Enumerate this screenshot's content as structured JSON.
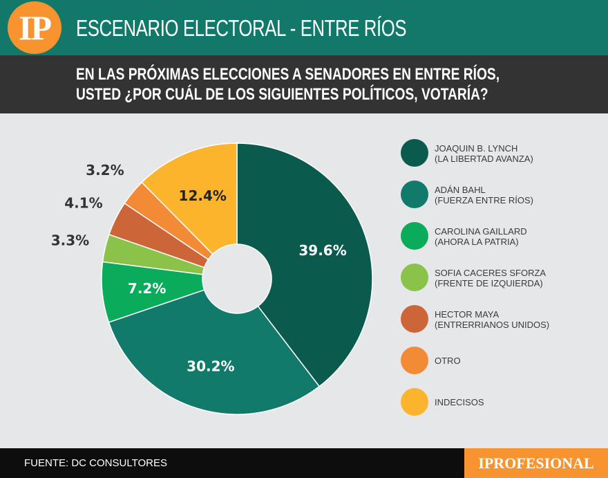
{
  "header": {
    "logo_text": "IP",
    "title": "ESCENARIO ELECTORAL - ENTRE RÍOS"
  },
  "question": {
    "line1": "EN LAS PRÓXIMAS ELECCIONES A SENADORES EN ENTRE RÍOS,",
    "line2": "USTED ¿POR CUÁL DE LOS SIGUIENTES POLÍTICOS, VOTARÍA?"
  },
  "chart_data": {
    "type": "pie",
    "variant": "donut",
    "title": "EN LAS PRÓXIMAS ELECCIONES A SENADORES EN ENTRE RÍOS, USTED ¿POR CUÁL DE LOS SIGUIENTES POLÍTICOS, VOTARÍA?",
    "legend_position": "right",
    "slices": [
      {
        "name": "JOAQUIN B. LYNCH",
        "party": "(LA LIBERTAD AVANZA)",
        "value": 39.6,
        "label": "39.6%",
        "color": "#0b5a4e"
      },
      {
        "name": "ADÁN BAHL",
        "party": "(FUERZA ENTRE RÍOS)",
        "value": 30.2,
        "label": "30.2%",
        "color": "#127a6a"
      },
      {
        "name": "CAROLINA GAILLARD",
        "party": "(AHORA LA PATRIA)",
        "value": 7.2,
        "label": "7.2%",
        "color": "#0aab5a"
      },
      {
        "name": "SOFIA CACERES SFORZA",
        "party": "(FRENTE DE IZQUIERDA)",
        "value": 3.3,
        "label": "3.3%",
        "color": "#8bc34a"
      },
      {
        "name": "HECTOR MAYA",
        "party": "(ENTRERRIANOS UNIDOS)",
        "value": 4.1,
        "label": "4.1%",
        "color": "#cc6538"
      },
      {
        "name": "OTRO",
        "party": "",
        "value": 3.2,
        "label": "3.2%",
        "color": "#f38a35"
      },
      {
        "name": "INDECISOS",
        "party": "",
        "value": 12.4,
        "label": "12.4%",
        "color": "#fbb42c"
      }
    ]
  },
  "footer": {
    "source": "FUENTE: DC CONSULTORES",
    "brand": "IPROFESIONAL"
  }
}
